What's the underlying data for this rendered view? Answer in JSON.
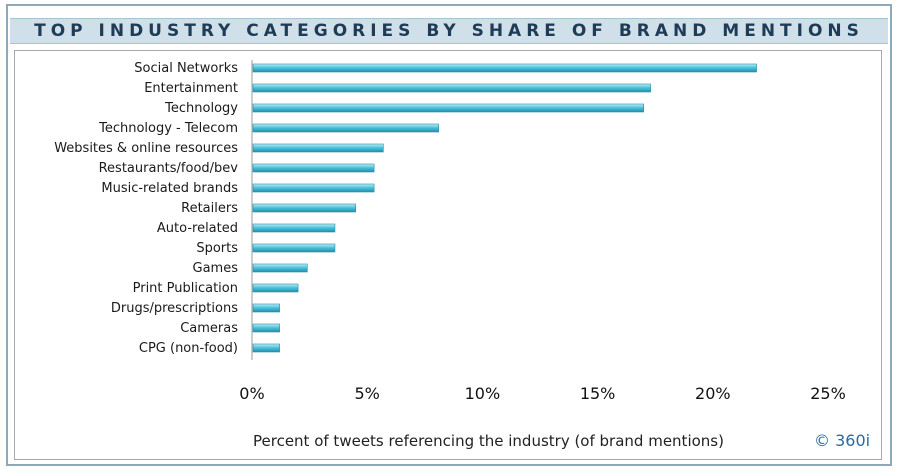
{
  "chart_data": {
    "type": "bar",
    "orientation": "horizontal",
    "title": "TOP INDUSTRY CATEGORIES BY SHARE OF BRAND MENTIONS",
    "categories": [
      "Social Networks",
      "Entertainment",
      "Technology",
      "Technology - Telecom",
      "Websites & online resources",
      "Restaurants/food/bev",
      "Music-related brands",
      "Retailers",
      "Auto-related",
      "Sports",
      "Games",
      "Print Publication",
      "Drugs/prescriptions",
      "Cameras",
      "CPG (non-food)"
    ],
    "values": [
      21.9,
      17.3,
      17.0,
      8.1,
      5.7,
      5.3,
      5.3,
      4.5,
      3.6,
      3.6,
      2.4,
      2.0,
      1.2,
      1.2,
      1.2
    ],
    "xlabel": "Percent of tweets referencing the industry (of brand mentions)",
    "xlim": [
      0,
      25
    ],
    "xticks": [
      "0%",
      "5%",
      "10%",
      "15%",
      "20%",
      "25%"
    ],
    "grid": false,
    "bar_color": "#4ec3db"
  },
  "credit": "© 360i"
}
